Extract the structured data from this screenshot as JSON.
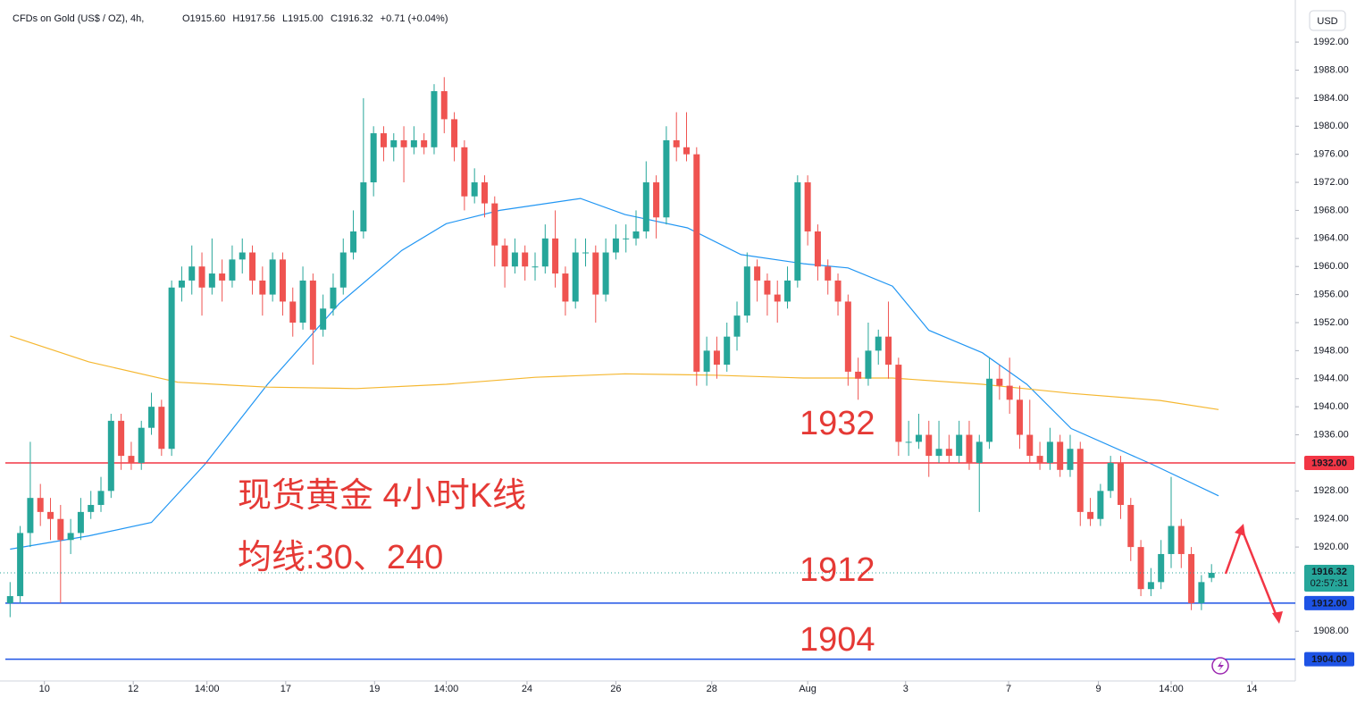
{
  "chart_data": {
    "type": "candlestick",
    "title": "CFDs on Gold (US$ / OZ), 4h,",
    "header_values": [
      "O1915.60",
      "H1917.56",
      "L1915.00",
      "C1916.32",
      "+0.71 (+0.04%)"
    ],
    "currency": "USD",
    "up_color": "#26a69a",
    "down_color": "#ef5350",
    "xlim": [
      -1,
      127.3
    ],
    "ylim": [
      1900.9,
      1998
    ],
    "xticks": [
      {
        "value": 3.4,
        "label": "10"
      },
      {
        "value": 12.2,
        "label": "12"
      },
      {
        "value": 19.5,
        "label": "14:00"
      },
      {
        "value": 27.3,
        "label": "17"
      },
      {
        "value": 36.1,
        "label": "19"
      },
      {
        "value": 43.2,
        "label": "14:00"
      },
      {
        "value": 51.2,
        "label": "24"
      },
      {
        "value": 60,
        "label": "26"
      },
      {
        "value": 69.5,
        "label": "28"
      },
      {
        "value": 79,
        "label": "Aug"
      },
      {
        "value": 88.7,
        "label": "3"
      },
      {
        "value": 98.9,
        "label": "7"
      },
      {
        "value": 107.8,
        "label": "9"
      },
      {
        "value": 115,
        "label": "14:00"
      },
      {
        "value": 123,
        "label": "14"
      }
    ],
    "yticks": [
      {
        "value": 1992,
        "label": "1992.00"
      },
      {
        "value": 1988,
        "label": "1988.00"
      },
      {
        "value": 1984,
        "label": "1984.00"
      },
      {
        "value": 1980,
        "label": "1980.00"
      },
      {
        "value": 1976,
        "label": "1976.00"
      },
      {
        "value": 1972,
        "label": "1972.00"
      },
      {
        "value": 1968,
        "label": "1968.00"
      },
      {
        "value": 1964,
        "label": "1964.00"
      },
      {
        "value": 1960,
        "label": "1960.00"
      },
      {
        "value": 1956,
        "label": "1956.00"
      },
      {
        "value": 1952,
        "label": "1952.00"
      },
      {
        "value": 1948,
        "label": "1948.00"
      },
      {
        "value": 1944,
        "label": "1944.00"
      },
      {
        "value": 1940,
        "label": "1940.00"
      },
      {
        "value": 1936,
        "label": "1936.00"
      },
      {
        "value": 1928,
        "label": "1928.00"
      },
      {
        "value": 1924,
        "label": "1924.00"
      },
      {
        "value": 1920,
        "label": "1920.00"
      },
      {
        "value": 1908,
        "label": "1908.00"
      }
    ],
    "ohlc": [
      [
        1912,
        1915,
        1910,
        1913
      ],
      [
        1913,
        1923,
        1912,
        1922
      ],
      [
        1922,
        1935,
        1920,
        1927
      ],
      [
        1927,
        1929,
        1923,
        1925
      ],
      [
        1925,
        1927,
        1921,
        1924
      ],
      [
        1924,
        1926,
        1912,
        1921
      ],
      [
        1921,
        1924,
        1919,
        1922
      ],
      [
        1922,
        1927,
        1921,
        1925
      ],
      [
        1925,
        1928,
        1924,
        1926
      ],
      [
        1926,
        1930,
        1925,
        1928
      ],
      [
        1928,
        1939,
        1927,
        1938
      ],
      [
        1938,
        1939,
        1931,
        1933
      ],
      [
        1933,
        1935,
        1931,
        1932
      ],
      [
        1932,
        1938,
        1931,
        1937
      ],
      [
        1937,
        1942,
        1936,
        1940
      ],
      [
        1940,
        1941,
        1933,
        1934
      ],
      [
        1934,
        1958,
        1933,
        1957
      ],
      [
        1957,
        1960,
        1955,
        1958
      ],
      [
        1958,
        1963,
        1956,
        1960
      ],
      [
        1960,
        1962,
        1953,
        1957
      ],
      [
        1957,
        1964,
        1956,
        1959
      ],
      [
        1959,
        1961,
        1955,
        1958
      ],
      [
        1958,
        1963,
        1957,
        1961
      ],
      [
        1961,
        1964,
        1959,
        1962
      ],
      [
        1962,
        1963,
        1956,
        1958
      ],
      [
        1958,
        1960,
        1953,
        1956
      ],
      [
        1956,
        1962,
        1955,
        1961
      ],
      [
        1961,
        1962,
        1953,
        1955
      ],
      [
        1955,
        1957,
        1950,
        1952
      ],
      [
        1952,
        1960,
        1951,
        1958
      ],
      [
        1958,
        1959,
        1946,
        1951
      ],
      [
        1951,
        1956,
        1950,
        1954
      ],
      [
        1954,
        1959,
        1953,
        1957
      ],
      [
        1957,
        1964,
        1956,
        1962
      ],
      [
        1962,
        1968,
        1961,
        1965
      ],
      [
        1965,
        1984,
        1964,
        1972
      ],
      [
        1972,
        1980,
        1970,
        1979
      ],
      [
        1979,
        1980,
        1975,
        1977
      ],
      [
        1977,
        1979,
        1975,
        1978
      ],
      [
        1978,
        1980,
        1972,
        1977
      ],
      [
        1977,
        1980,
        1976,
        1978
      ],
      [
        1978,
        1979,
        1976,
        1977
      ],
      [
        1977,
        1986,
        1976,
        1985
      ],
      [
        1985,
        1987,
        1979,
        1981
      ],
      [
        1981,
        1982,
        1975,
        1977
      ],
      [
        1977,
        1978,
        1968,
        1970
      ],
      [
        1970,
        1974,
        1969,
        1972
      ],
      [
        1972,
        1973,
        1967,
        1969
      ],
      [
        1969,
        1970,
        1960,
        1963
      ],
      [
        1963,
        1964,
        1957,
        1960
      ],
      [
        1960,
        1964,
        1959,
        1962
      ],
      [
        1962,
        1963,
        1958,
        1960
      ],
      [
        1960,
        1962,
        1958,
        1960
      ],
      [
        1960,
        1966,
        1959,
        1964
      ],
      [
        1964,
        1968,
        1957,
        1959
      ],
      [
        1959,
        1960,
        1953,
        1955
      ],
      [
        1955,
        1964,
        1954,
        1962
      ],
      [
        1962,
        1964,
        1960,
        1962
      ],
      [
        1962,
        1963,
        1952,
        1956
      ],
      [
        1956,
        1964,
        1955,
        1962
      ],
      [
        1962,
        1966,
        1961,
        1964
      ],
      [
        1964,
        1966,
        1962,
        1964
      ],
      [
        1964,
        1968,
        1963,
        1965
      ],
      [
        1965,
        1975,
        1964,
        1972
      ],
      [
        1972,
        1973,
        1964,
        1967
      ],
      [
        1967,
        1980,
        1966,
        1978
      ],
      [
        1978,
        1982,
        1975,
        1977
      ],
      [
        1977,
        1982,
        1975,
        1976
      ],
      [
        1976,
        1977,
        1943,
        1945
      ],
      [
        1945,
        1950,
        1943,
        1948
      ],
      [
        1948,
        1950,
        1944,
        1946
      ],
      [
        1946,
        1952,
        1945,
        1950
      ],
      [
        1950,
        1955,
        1948,
        1953
      ],
      [
        1953,
        1962,
        1952,
        1960
      ],
      [
        1960,
        1961,
        1955,
        1958
      ],
      [
        1958,
        1959,
        1953,
        1956
      ],
      [
        1956,
        1958,
        1952,
        1955
      ],
      [
        1955,
        1960,
        1954,
        1958
      ],
      [
        1958,
        1973,
        1957,
        1972
      ],
      [
        1972,
        1973,
        1963,
        1965
      ],
      [
        1965,
        1966,
        1958,
        1960
      ],
      [
        1960,
        1961,
        1956,
        1958
      ],
      [
        1958,
        1959,
        1953,
        1955
      ],
      [
        1955,
        1956,
        1943,
        1945
      ],
      [
        1945,
        1947,
        1941,
        1944
      ],
      [
        1944,
        1952,
        1943,
        1948
      ],
      [
        1948,
        1951,
        1946,
        1950
      ],
      [
        1950,
        1955,
        1944,
        1946
      ],
      [
        1946,
        1947,
        1933,
        1935
      ],
      [
        1935,
        1938,
        1933,
        1935
      ],
      [
        1935,
        1939,
        1934,
        1936
      ],
      [
        1936,
        1938,
        1930,
        1933
      ],
      [
        1933,
        1938,
        1932,
        1934
      ],
      [
        1934,
        1936,
        1932,
        1933
      ],
      [
        1933,
        1938,
        1932,
        1936
      ],
      [
        1936,
        1938,
        1931,
        1932
      ],
      [
        1932,
        1936,
        1925,
        1935
      ],
      [
        1935,
        1947,
        1934,
        1944
      ],
      [
        1944,
        1946,
        1941,
        1943
      ],
      [
        1943,
        1947,
        1939,
        1941
      ],
      [
        1941,
        1943,
        1934,
        1936
      ],
      [
        1936,
        1941,
        1932,
        1933
      ],
      [
        1933,
        1935,
        1931,
        1932
      ],
      [
        1932,
        1937,
        1931,
        1935
      ],
      [
        1935,
        1936,
        1930,
        1931
      ],
      [
        1931,
        1936,
        1930,
        1934
      ],
      [
        1934,
        1935,
        1923,
        1925
      ],
      [
        1925,
        1927,
        1923,
        1924
      ],
      [
        1924,
        1929,
        1923,
        1928
      ],
      [
        1928,
        1933,
        1927,
        1932
      ],
      [
        1932,
        1933,
        1924,
        1926
      ],
      [
        1926,
        1927,
        1918,
        1920
      ],
      [
        1920,
        1921,
        1913,
        1914
      ],
      [
        1914,
        1917,
        1913,
        1915
      ],
      [
        1915,
        1921,
        1914,
        1919
      ],
      [
        1919,
        1930,
        1917,
        1923
      ],
      [
        1923,
        1924,
        1917,
        1919
      ],
      [
        1919,
        1920,
        1911,
        1912
      ],
      [
        1912,
        1916,
        1911,
        1915
      ],
      [
        1915.6,
        1917.56,
        1915.0,
        1916.32
      ]
    ],
    "moving_averages": [
      {
        "color": "#2196f3",
        "x": [
          0,
          7.8,
          14,
          19.3,
          25.5,
          32.6,
          38.8,
          43.2,
          48.5,
          56.5,
          60.9,
          67.1,
          72.4,
          78.6,
          83,
          87.4,
          91,
          96.3,
          100.7,
          105.1,
          113.1,
          119.7
        ],
        "values": [
          1919.7,
          1921.6,
          1923.5,
          1931.8,
          1943.2,
          1954.7,
          1962.3,
          1966.1,
          1968,
          1969.7,
          1967.4,
          1965.5,
          1961.7,
          1960.4,
          1959.8,
          1957.2,
          1950.9,
          1947.7,
          1943.2,
          1936.9,
          1931.8,
          1927.3
        ]
      },
      {
        "color": "#f5b730",
        "x": [
          0,
          7.8,
          16.6,
          25.5,
          34.3,
          43.2,
          52,
          60.9,
          69.7,
          78.6,
          87.4,
          96.3,
          105.1,
          113.9,
          119.7
        ],
        "values": [
          1950.1,
          1946.4,
          1943.5,
          1942.8,
          1942.6,
          1943.2,
          1944.2,
          1944.7,
          1944.5,
          1944.1,
          1944.1,
          1943.2,
          1941.9,
          1940.9,
          1939.6
        ]
      }
    ],
    "levels": [
      {
        "value": 1932,
        "label": "1932.00",
        "color": "#f23645"
      },
      {
        "value": 1912,
        "label": "1912.00",
        "color": "#1e53e5"
      },
      {
        "value": 1904,
        "label": "1904.00",
        "color": "#1e53e5"
      }
    ],
    "last_price": {
      "value": 1916.32,
      "label": "1916.32",
      "countdown": "02:57:31",
      "color": "#26a69a"
    },
    "annotations": [
      "1932",
      "1912",
      "1904",
      "现货黄金 4小时K线",
      "均线:30、240"
    ]
  }
}
